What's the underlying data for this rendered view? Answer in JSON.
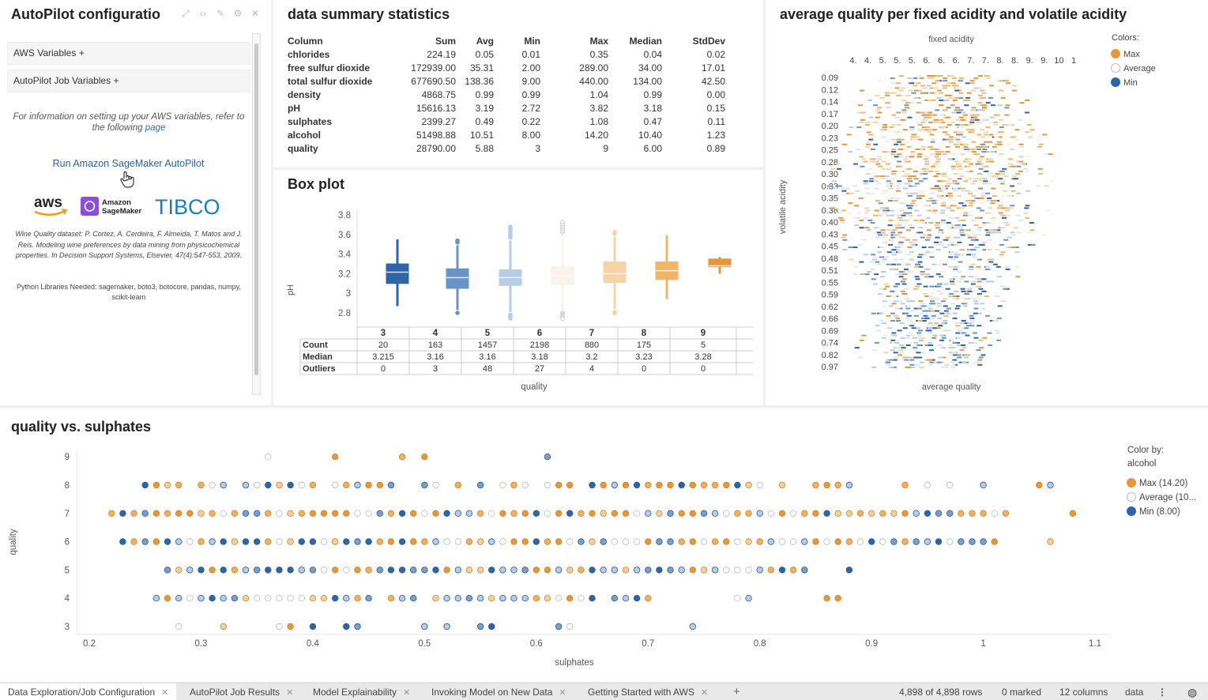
{
  "config": {
    "title": "AutoPilot configuratio",
    "aws_vars": "AWS Variables +",
    "job_vars": "AutoPilot Job Variables +",
    "info_text": "For information on setting up your AWS variables, refer to the following",
    "info_link": "page",
    "run_button": "Run Amazon SageMaker AutoPilot",
    "logo_aws": "aws",
    "logo_sagemaker_1": "Amazon",
    "logo_sagemaker_2": "SageMaker",
    "logo_tibco": "TIBCO",
    "citation": "Wine Quality dataset: P. Cortez, A. Cerdeira, F. Almeida, T. Matos and J. Reis. Modeling wine preferences by data mining from physicochemical properties. In Decision Support Systems, Elsevier, 47(4):547-553, 2009.",
    "libraries": "Python Libraries Needed: sagemaker, boto3, botocore, pandas, numpy, scikit-learn"
  },
  "summary": {
    "title": "data summary statistics",
    "headers": [
      "Column",
      "Sum",
      "Avg",
      "Min",
      "Max",
      "Median",
      "StdDev"
    ],
    "rows": [
      [
        "chlorides",
        "224.19",
        "0.05",
        "0.01",
        "0.35",
        "0.04",
        "0.02"
      ],
      [
        "free sulfur dioxide",
        "172939.00",
        "35.31",
        "2.00",
        "289.00",
        "34.00",
        "17.01"
      ],
      [
        "total sulfur dioxide",
        "677690.50",
        "138.36",
        "9.00",
        "440.00",
        "134.00",
        "42.50"
      ],
      [
        "density",
        "4868.75",
        "0.99",
        "0.99",
        "1.04",
        "0.99",
        "0.00"
      ],
      [
        "pH",
        "15616.13",
        "3.19",
        "2.72",
        "3.82",
        "3.18",
        "0.15"
      ],
      [
        "sulphates",
        "2399.27",
        "0.49",
        "0.22",
        "1.08",
        "0.47",
        "0.11"
      ],
      [
        "alcohol",
        "51498.88",
        "10.51",
        "8.00",
        "14.20",
        "10.40",
        "1.23"
      ],
      [
        "quality",
        "28790.00",
        "5.88",
        "3",
        "9",
        "6.00",
        "0.89"
      ]
    ]
  },
  "boxplot": {
    "title": "Box plot",
    "ylabel": "pH",
    "xlabel": "quality",
    "yticks": [
      "2.8",
      "3",
      "3.2",
      "3.4",
      "3.6",
      "3.8"
    ],
    "row_labels": [
      "Count",
      "Median",
      "Outliers"
    ]
  },
  "heatmap": {
    "title": "average quality per fixed acidity and volatile acidity",
    "top_label": "fixed acidity",
    "xticks": [
      "4.",
      "4.",
      "5.",
      "5.",
      "5.",
      "6.",
      "6.",
      "6.",
      "7.",
      "7.",
      "8.",
      "8.",
      "9.",
      "9.",
      "10",
      "1"
    ],
    "yticks": [
      "0.09",
      "0.12",
      "0.14",
      "0.17",
      "0.20",
      "0.23",
      "0.25",
      "0.28",
      "0.30",
      "0.33",
      "0.35",
      "0.38",
      "0.40",
      "0.43",
      "0.45",
      "0.48",
      "0.51",
      "0.55",
      "0.59",
      "0.62",
      "0.66",
      "0.69",
      "0.74",
      "0.82",
      "0.97"
    ],
    "ylabel": "volatile acidity",
    "xlabel": "average quality",
    "legend_title": "Colors:",
    "legend": [
      "Max",
      "Average",
      "Min"
    ]
  },
  "scatter": {
    "title": "quality vs. sulphates",
    "xlabel": "sulphates",
    "ylabel": "quality",
    "legend_title_1": "Color by:",
    "legend_title_2": "alcohol",
    "legend": [
      "Max (14.20)",
      "Average (10...",
      "Min (8.00)"
    ]
  },
  "colors": {
    "max": "#e8963a",
    "avg": "#ffffff",
    "min": "#2f65a8"
  },
  "chart_data": [
    {
      "type": "box",
      "title": "Box plot",
      "xlabel": "quality",
      "ylabel": "pH",
      "ylim": [
        2.72,
        3.86
      ],
      "categories": [
        "3",
        "4",
        "5",
        "6",
        "7",
        "8",
        "9"
      ],
      "count": [
        20,
        163,
        1457,
        2198,
        880,
        175,
        5
      ],
      "median": [
        3.215,
        3.16,
        3.16,
        3.18,
        3.2,
        3.23,
        3.28
      ],
      "outliers": [
        0,
        3,
        48,
        27,
        4,
        0,
        0
      ],
      "q1": [
        3.1,
        3.05,
        3.08,
        3.09,
        3.11,
        3.14,
        3.27
      ],
      "q3": [
        3.3,
        3.25,
        3.24,
        3.27,
        3.32,
        3.32,
        3.35
      ],
      "whisker_low": [
        2.87,
        2.83,
        2.81,
        2.83,
        2.84,
        2.94,
        3.2
      ],
      "whisker_high": [
        3.55,
        3.49,
        3.54,
        3.59,
        3.58,
        3.59,
        3.37
      ],
      "colors": [
        "#2f65a8",
        "#6a93c6",
        "#b7cce6",
        "#fbf3ea",
        "#f8d3a6",
        "#f2b567",
        "#e8963a"
      ]
    },
    {
      "type": "scatter",
      "title": "quality vs. sulphates",
      "xlabel": "sulphates",
      "ylabel": "quality",
      "xlim": [
        0.2,
        1.1
      ],
      "xticks": [
        "0.2",
        "0.3",
        "0.4",
        "0.5",
        "0.6",
        "0.7",
        "0.8",
        "0.9",
        "1",
        "1.1"
      ],
      "ylim": [
        3,
        9
      ],
      "yticks": [
        "3",
        "4",
        "5",
        "6",
        "7",
        "8",
        "9"
      ],
      "ranges": [
        {
          "quality": 9,
          "values": [
            0.36,
            0.42,
            0.48,
            0.5,
            0.61
          ]
        },
        {
          "quality": 8,
          "min": 0.25,
          "max": 0.95,
          "extra": [
            0.97,
            1.0,
            1.05,
            1.06
          ]
        },
        {
          "quality": 7,
          "min": 0.22,
          "max": 1.02,
          "extra": [
            1.08
          ]
        },
        {
          "quality": 6,
          "min": 0.23,
          "max": 1.01,
          "extra": [
            1.06
          ]
        },
        {
          "quality": 5,
          "min": 0.27,
          "max": 0.84,
          "extra": [
            0.88
          ]
        },
        {
          "quality": 4,
          "min": 0.25,
          "max": 0.7,
          "extra": [
            0.78,
            0.79,
            0.86,
            0.87
          ]
        },
        {
          "quality": 3,
          "values": [
            0.28,
            0.32,
            0.37,
            0.38,
            0.4,
            0.43,
            0.44,
            0.5,
            0.52,
            0.55,
            0.56,
            0.62,
            0.63,
            0.74
          ]
        }
      ]
    },
    {
      "type": "heatmap",
      "title": "average quality per fixed acidity and volatile acidity",
      "xlabel": "average quality",
      "ylabel": "volatile acidity"
    }
  ],
  "tabs": [
    {
      "label": "Data Exploration/Job Configuration",
      "active": true
    },
    {
      "label": "AutoPilot Job Results"
    },
    {
      "label": "Model Explainability"
    },
    {
      "label": "Invoking Model on New Data"
    },
    {
      "label": "Getting Started with AWS"
    }
  ],
  "status": {
    "rows": "4,898 of 4,898 rows",
    "marked": "0 marked",
    "columns": "12 columns",
    "table": "data"
  }
}
